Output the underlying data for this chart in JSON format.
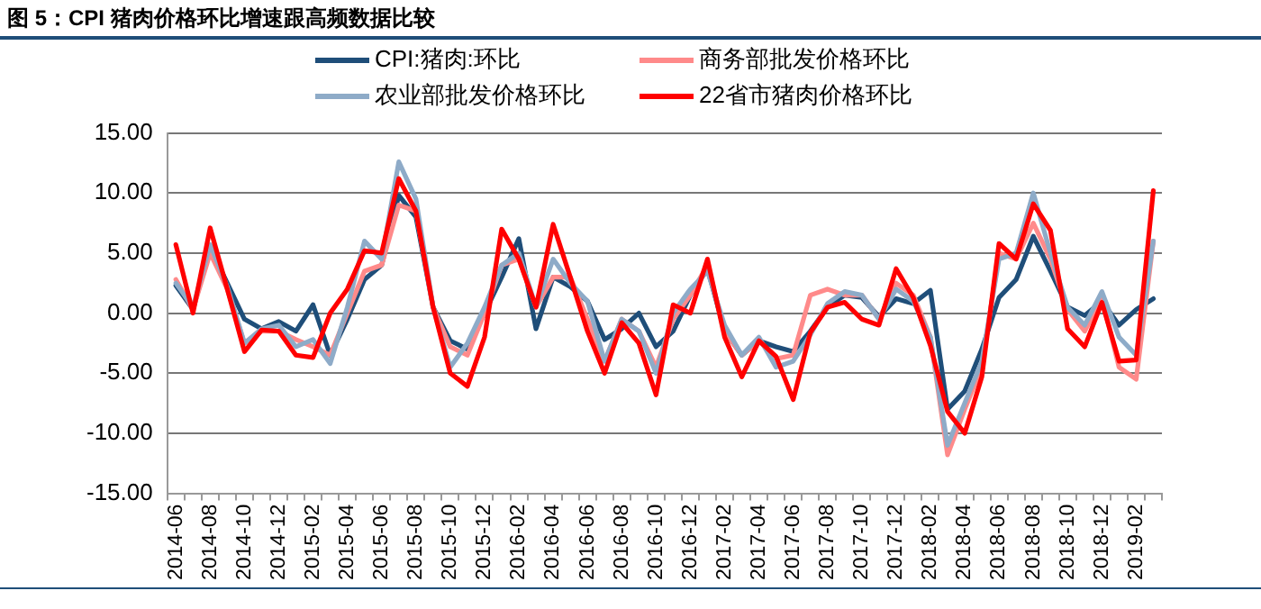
{
  "chart_data": {
    "type": "line",
    "title": "图 5：CPI 猪肉价格环比增速跟高频数据比较",
    "categories": [
      "2014-06",
      null,
      "2014-08",
      null,
      "2014-10",
      null,
      "2014-12",
      null,
      "2015-02",
      null,
      "2015-04",
      null,
      "2015-06",
      null,
      "2015-08",
      null,
      "2015-10",
      null,
      "2015-12",
      null,
      "2016-02",
      null,
      "2016-04",
      null,
      "2016-06",
      null,
      "2016-08",
      null,
      "2016-10",
      null,
      "2016-12",
      null,
      "2017-02",
      null,
      "2017-04",
      null,
      "2017-06",
      null,
      "2017-08",
      null,
      "2017-10",
      null,
      "2017-12",
      null,
      "2018-02",
      null,
      "2018-04",
      null,
      "2018-06",
      null,
      "2018-08",
      null,
      "2018-10",
      null,
      "2018-12",
      null,
      "2019-02",
      null
    ],
    "series": [
      {
        "name": "CPI:猪肉:环比",
        "color": "#1f4e79",
        "values": [
          2.3,
          0.3,
          5.5,
          2.5,
          -0.5,
          -1.3,
          -0.7,
          -1.5,
          0.7,
          -3.5,
          -0.5,
          2.8,
          4,
          9.8,
          8,
          0.5,
          -2.3,
          -3,
          0,
          3,
          6.2,
          -1.3,
          3,
          2.2,
          1,
          -2.2,
          -1.3,
          0,
          -2.8,
          -1.5,
          1.5,
          3.7,
          -1.5,
          -3.5,
          -2.3,
          -2.8,
          -3.2,
          -1.5,
          0.5,
          1.5,
          1.3,
          -0.3,
          1.2,
          0.8,
          1.9,
          -8,
          -6.5,
          -3,
          1.3,
          2.8,
          6.4,
          3.5,
          0.5,
          -0.2,
          1,
          -1,
          0.3,
          1.2
        ]
      },
      {
        "name": "商务部批发价格环比",
        "color": "#ff8a8a",
        "values": [
          2.8,
          0.3,
          5,
          2,
          -2.5,
          -1.5,
          -1.5,
          -2.2,
          -2.8,
          -3.5,
          0,
          3.5,
          4,
          9,
          8.5,
          0.5,
          -2.8,
          -3.5,
          0,
          4,
          4.5,
          0.5,
          3,
          3,
          -0.5,
          -4,
          -0.5,
          -1.5,
          -4.5,
          -0.5,
          1.5,
          4,
          -1.5,
          -3.5,
          -2.3,
          -3.8,
          -3.5,
          1.5,
          2,
          1.5,
          1.5,
          -0.5,
          2.5,
          1.5,
          -2,
          -11.8,
          -8,
          -4.5,
          5,
          4.5,
          7.5,
          4.5,
          0.3,
          -1.5,
          1.3,
          -4.5,
          -5.5,
          6
        ]
      },
      {
        "name": "农业部批发价格环比",
        "color": "#8eabc8",
        "values": [
          2.5,
          0.5,
          5.7,
          2.2,
          -2.5,
          -1.3,
          -1,
          -2.8,
          -2.2,
          -4.2,
          0.5,
          6,
          4.5,
          12.6,
          9.5,
          0.5,
          -4.5,
          -2.5,
          0.5,
          4,
          5,
          0.5,
          4.5,
          2.5,
          1,
          -4,
          -0.5,
          -1.5,
          -5,
          0,
          2,
          3.5,
          -1,
          -3.5,
          -2,
          -4.5,
          -4,
          -1.8,
          0.8,
          1.8,
          1.5,
          -0.5,
          2,
          1,
          -2,
          -11,
          -7.5,
          -4,
          4.5,
          5,
          10,
          5,
          0.5,
          -1,
          1.8,
          -2,
          -3.5,
          6
        ]
      },
      {
        "name": "22省市猪肉价格环比",
        "color": "#ff0000",
        "values": [
          5.7,
          0,
          7.1,
          2,
          -3.2,
          -1.4,
          -1.5,
          -3.5,
          -3.7,
          0,
          2,
          5.2,
          5,
          11.2,
          8.5,
          0.5,
          -5,
          -6.1,
          -2,
          7,
          4.5,
          0.5,
          7.4,
          3,
          -1.5,
          -5,
          -0.8,
          -2.5,
          -6.8,
          0.7,
          0,
          4.5,
          -2,
          -5.3,
          -2.3,
          -3.6,
          -7.2,
          -1.6,
          0.5,
          0.9,
          -0.5,
          -1,
          3.7,
          1.3,
          -2.7,
          -8.2,
          -10,
          -5.3,
          5.8,
          4.5,
          9.1,
          6.9,
          -1.3,
          -2.8,
          0.9,
          -4,
          -3.9,
          10.2
        ]
      }
    ],
    "ylim": [
      -15,
      15
    ],
    "yticks": [
      {
        "value": -15,
        "label": "-15.00"
      },
      {
        "value": -10,
        "label": "-10.00"
      },
      {
        "value": -5,
        "label": "-5.00"
      },
      {
        "value": 0,
        "label": "0.00"
      },
      {
        "value": 5,
        "label": "5.00"
      },
      {
        "value": 10,
        "label": "10.00"
      },
      {
        "value": 15,
        "label": "15.00"
      }
    ],
    "grid": "y",
    "legend": "top",
    "marker": "none",
    "line_style": "solid"
  }
}
